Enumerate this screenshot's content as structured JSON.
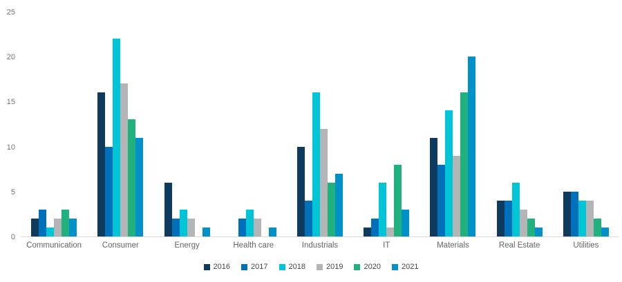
{
  "chart_data": {
    "type": "bar",
    "title": "",
    "xlabel": "",
    "ylabel": "",
    "categories": [
      "Communication",
      "Consumer",
      "Energy",
      "Health care",
      "Industrials",
      "IT",
      "Materials",
      "Real Estate",
      "Utilities"
    ],
    "series": [
      {
        "name": "2016",
        "color": "#0e3a5e",
        "values": [
          2,
          16,
          6,
          0,
          10,
          1,
          11,
          4,
          5
        ]
      },
      {
        "name": "2017",
        "color": "#0070ba",
        "values": [
          3,
          10,
          2,
          2,
          4,
          2,
          8,
          4,
          5
        ]
      },
      {
        "name": "2018",
        "color": "#00c5d7",
        "values": [
          1,
          22,
          3,
          3,
          16,
          6,
          14,
          6,
          4
        ]
      },
      {
        "name": "2019",
        "color": "#b2b4b6",
        "values": [
          2,
          17,
          2,
          2,
          12,
          1,
          9,
          3,
          4
        ]
      },
      {
        "name": "2020",
        "color": "#21b17e",
        "values": [
          3,
          13,
          0,
          0,
          6,
          8,
          16,
          2,
          2
        ]
      },
      {
        "name": "2021",
        "color": "#0091c9",
        "values": [
          2,
          11,
          1,
          1,
          7,
          3,
          20,
          1,
          1
        ]
      }
    ],
    "ylim": [
      0,
      25
    ],
    "yticks": [
      0,
      5,
      10,
      15,
      20,
      25
    ],
    "grid": false,
    "legend_position": "bottom",
    "axis_line_color": "#d9d9d9",
    "tick_label_color": "#737373",
    "category_label_color": "#646464",
    "legend_label_color": "#444444",
    "background_color": "#ffffff"
  }
}
